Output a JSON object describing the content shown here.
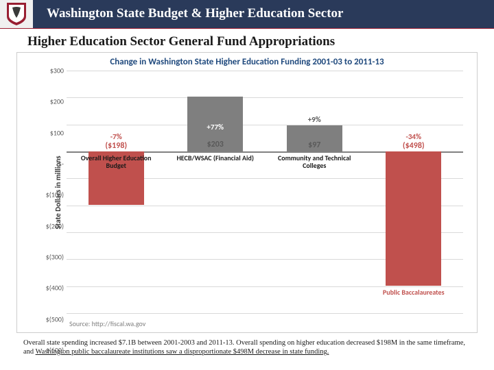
{
  "header": {
    "title": "Washington State Budget & Higher Education Sector",
    "logo_bg": "#f0f0f0",
    "bar_bg": "#2a3a5a",
    "underline_color": "#9a1b30",
    "shield_outer": "#981e32",
    "shield_inner": "#ffffff",
    "shield_accent": "#3a3a3a"
  },
  "subtitle": "Higher Education Sector General Fund Appropriations",
  "chart": {
    "title": "Change in Washington State Higher Education Funding 2001-03 to 2011-13",
    "title_color": "#1f497d",
    "y_axis_label": "State Dollars in millions",
    "ylim": [
      -600,
      300
    ],
    "ytick_step": 100,
    "yticks": [
      {
        "v": 300,
        "label": "$300"
      },
      {
        "v": 200,
        "label": "$200"
      },
      {
        "v": 100,
        "label": "$100"
      },
      {
        "v": 0,
        "label": "$-"
      },
      {
        "v": -100,
        "label": "$(100)"
      },
      {
        "v": -200,
        "label": "$(200)"
      },
      {
        "v": -300,
        "label": "$(300)"
      },
      {
        "v": -400,
        "label": "$(400)"
      },
      {
        "v": -500,
        "label": "$(500)"
      },
      {
        "v": -600,
        "label": "$(600)"
      }
    ],
    "grid_color": "#d9d9d9",
    "zero_color": "#808080",
    "bar_width_pct": 14,
    "gap_pct": 11,
    "bars": [
      {
        "category": "Overall Higher Education Budget",
        "value": -198,
        "pct_label": "-7%",
        "value_label": "($198)",
        "color": "#c0504d",
        "pct_color": "#c0504d",
        "val_color": "#c0504d",
        "label_pos": "below-zero"
      },
      {
        "category": "HECB/WSAC (Financial Aid)",
        "value": 203,
        "pct_label": "+77%",
        "value_label": "$203",
        "color": "#7f7f7f",
        "pct_color": "#ffffff",
        "val_color": "#595959",
        "label_pos": "below-zero"
      },
      {
        "category": "Community and Technical Colleges",
        "value": 97,
        "pct_label": "+9%",
        "value_label": "$97",
        "color": "#7f7f7f",
        "pct_color": "#595959",
        "val_color": "#595959",
        "label_pos": "below-zero"
      },
      {
        "category": "Public Baccalaureates",
        "value": -498,
        "pct_label": "-34%",
        "value_label": "($498)",
        "color": "#c0504d",
        "pct_color": "#c0504d",
        "val_color": "#c0504d",
        "label_pos": "below-bar"
      }
    ],
    "source": "Source: http://fiscal.wa.gov"
  },
  "caption": {
    "pre": "Overall state spending increased $7.1B between 2001-2003 and 2011-13. Overall spending on higher education decreased $198M in the same timeframe, and ",
    "underlined": "Washington public baccalaureate institutions saw a disproportionate $498M decrease in state funding."
  }
}
